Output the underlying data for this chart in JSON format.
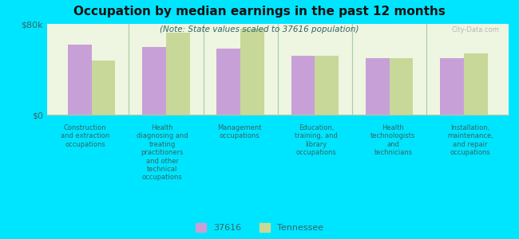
{
  "title": "Occupation by median earnings in the past 12 months",
  "subtitle": "(Note: State values scaled to 37616 population)",
  "background_color": "#00e5ff",
  "plot_bg_color": "#eef5e0",
  "categories": [
    "Construction\nand extraction\noccupations",
    "Health\ndiagnosing and\ntreating\npractitioners\nand other\ntechnical\noccupations",
    "Management\noccupations",
    "Education,\ntraining, and\nlibrary\noccupations",
    "Health\ntechnologists\nand\ntechnicians",
    "Installation,\nmaintenance,\nand repair\noccupations"
  ],
  "values_37616": [
    62000,
    60000,
    58000,
    52000,
    50000,
    50000
  ],
  "values_tennessee": [
    48000,
    72000,
    76000,
    52000,
    50000,
    54000
  ],
  "color_37616": "#c8a0d8",
  "color_tennessee": "#c8d898",
  "ylim": [
    0,
    80000
  ],
  "yticks": [
    0,
    80000
  ],
  "ytick_labels": [
    "$0",
    "$80k"
  ],
  "legend_37616": "37616",
  "legend_tennessee": "Tennessee",
  "bar_width": 0.32,
  "text_color": "#336666",
  "title_color": "#111111",
  "divider_color": "#aaccaa",
  "watermark": "City-Data.com"
}
